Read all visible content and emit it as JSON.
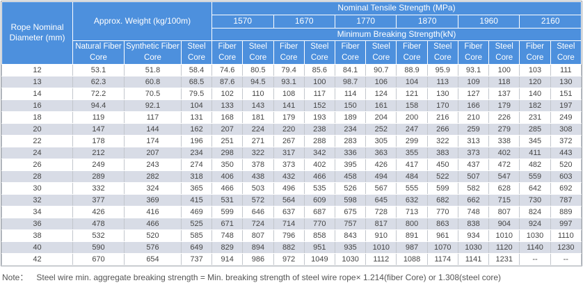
{
  "colors": {
    "header_bg": "#4d90dd",
    "header_text": "#ffffff",
    "stripe_row_bg": "#d8dce6",
    "data_text": "#444444",
    "cell_border": "#c2c6cc",
    "outer_border": "#9aa0a8",
    "note_text": "#555555"
  },
  "table": {
    "header": {
      "diameter_label": "Rope Nominal Diameter (mm)",
      "weight_label": "Approx. Weight (kg/100m)",
      "tensile_label": "Nominal Tensile Strength  (MPa)",
      "breaking_label": "Minimum Breaking Strength(kN)",
      "tensile_grades": [
        "1570",
        "1670",
        "1770",
        "1870",
        "1960",
        "2160"
      ],
      "weight_columns": [
        "Natural Fiber Core",
        "Synthetic Fiber Core",
        "Steel Core"
      ],
      "core_columns": [
        "Fiber Core",
        "Steel Core"
      ]
    },
    "rows": [
      [
        "12",
        "53.1",
        "51.8",
        "58.4",
        "74.6",
        "80.5",
        "79.4",
        "85.6",
        "84.1",
        "90.7",
        "88.9",
        "95.9",
        "93.1",
        "100",
        "103",
        "111"
      ],
      [
        "13",
        "62.3",
        "60.8",
        "68.5",
        "87.6",
        "94.5",
        "93.1",
        "100",
        "98.7",
        "106",
        "104",
        "113",
        "109",
        "118",
        "120",
        "130"
      ],
      [
        "14",
        "72.2",
        "70.5",
        "79.5",
        "102",
        "110",
        "108",
        "117",
        "114",
        "124",
        "121",
        "130",
        "127",
        "137",
        "140",
        "151"
      ],
      [
        "16",
        "94.4",
        "92.1",
        "104",
        "133",
        "143",
        "141",
        "152",
        "150",
        "161",
        "158",
        "170",
        "166",
        "179",
        "182",
        "197"
      ],
      [
        "18",
        "119",
        "117",
        "131",
        "168",
        "181",
        "179",
        "193",
        "189",
        "204",
        "200",
        "216",
        "210",
        "226",
        "231",
        "249"
      ],
      [
        "20",
        "147",
        "144",
        "162",
        "207",
        "224",
        "220",
        "238",
        "234",
        "252",
        "247",
        "266",
        "259",
        "279",
        "285",
        "308"
      ],
      [
        "22",
        "178",
        "174",
        "196",
        "251",
        "271",
        "267",
        "288",
        "283",
        "305",
        "299",
        "322",
        "313",
        "338",
        "345",
        "372"
      ],
      [
        "24",
        "212",
        "207",
        "234",
        "298",
        "322",
        "317",
        "342",
        "336",
        "363",
        "355",
        "383",
        "373",
        "402",
        "411",
        "443"
      ],
      [
        "26",
        "249",
        "243",
        "274",
        "350",
        "378",
        "373",
        "402",
        "395",
        "426",
        "417",
        "450",
        "437",
        "472",
        "482",
        "520"
      ],
      [
        "28",
        "289",
        "282",
        "318",
        "406",
        "438",
        "432",
        "466",
        "458",
        "494",
        "484",
        "522",
        "507",
        "547",
        "559",
        "603"
      ],
      [
        "30",
        "332",
        "324",
        "365",
        "466",
        "503",
        "496",
        "535",
        "526",
        "567",
        "555",
        "599",
        "582",
        "628",
        "642",
        "692"
      ],
      [
        "32",
        "377",
        "369",
        "415",
        "531",
        "572",
        "564",
        "609",
        "598",
        "645",
        "632",
        "682",
        "662",
        "715",
        "730",
        "787"
      ],
      [
        "34",
        "426",
        "416",
        "469",
        "599",
        "646",
        "637",
        "687",
        "675",
        "728",
        "713",
        "770",
        "748",
        "807",
        "824",
        "889"
      ],
      [
        "36",
        "478",
        "466",
        "525",
        "671",
        "724",
        "714",
        "770",
        "757",
        "817",
        "800",
        "863",
        "838",
        "904",
        "924",
        "997"
      ],
      [
        "38",
        "532",
        "520",
        "585",
        "748",
        "807",
        "796",
        "858",
        "843",
        "910",
        "891",
        "961",
        "934",
        "1010",
        "1030",
        "1110"
      ],
      [
        "40",
        "590",
        "576",
        "649",
        "829",
        "894",
        "882",
        "951",
        "935",
        "1010",
        "987",
        "1070",
        "1030",
        "1120",
        "1140",
        "1230"
      ],
      [
        "42",
        "670",
        "654",
        "737",
        "914",
        "986",
        "972",
        "1049",
        "1030",
        "1112",
        "1088",
        "1174",
        "1141",
        "1231",
        "--",
        "--"
      ]
    ]
  },
  "note": {
    "label": "Note：",
    "text": "Steel wire min. aggregate breaking strength = Min. breaking strength of steel wire rope× 1.214(fiber Core) or 1.308(steel core)"
  }
}
